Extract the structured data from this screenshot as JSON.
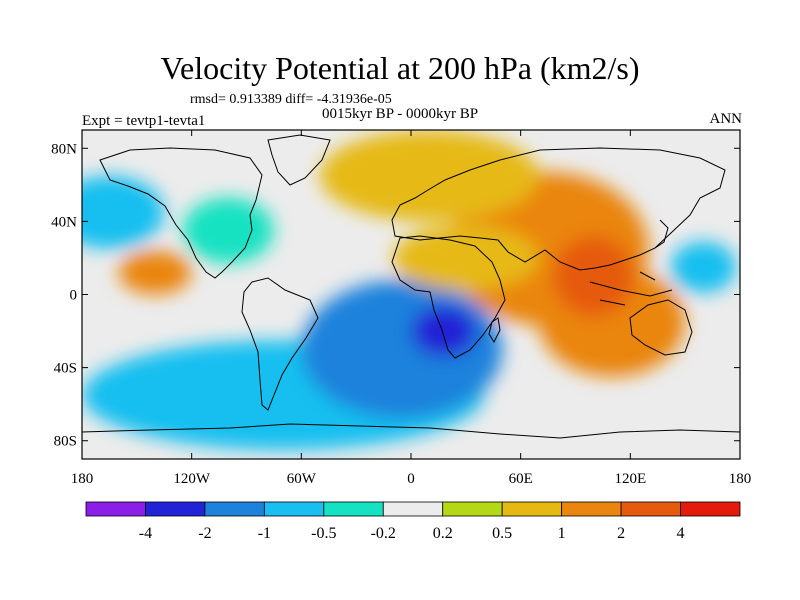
{
  "chart_data": {
    "type": "heatmap",
    "title": "Velocity Potential at 200 hPa (km2/s)",
    "stats_line": "rmsd= 0.913389 diff= -4.31936e-05",
    "left_subtitle": "Expt = tevtp1-tevta1",
    "center_subtitle": "0015kyr BP - 0000kyr BP",
    "right_subtitle": "ANN",
    "projection": "cylindrical equidistant",
    "xlim": [
      -180,
      180
    ],
    "ylim": [
      -90,
      90
    ],
    "x_ticks": [
      {
        "value": -180,
        "label": "180"
      },
      {
        "value": -120,
        "label": "120W"
      },
      {
        "value": -60,
        "label": "60W"
      },
      {
        "value": 0,
        "label": "0"
      },
      {
        "value": 60,
        "label": "60E"
      },
      {
        "value": 120,
        "label": "120E"
      },
      {
        "value": 180,
        "label": "180"
      }
    ],
    "y_ticks": [
      {
        "value": 80,
        "label": "80N"
      },
      {
        "value": 40,
        "label": "40N"
      },
      {
        "value": 0,
        "label": "0"
      },
      {
        "value": -40,
        "label": "40S"
      },
      {
        "value": -80,
        "label": "80S"
      }
    ],
    "colorbar": {
      "colors": [
        "#8b1ee8",
        "#2222d6",
        "#1c82dc",
        "#19bff0",
        "#15e2c2",
        "#ececec",
        "#b4d816",
        "#e6b912",
        "#ea8510",
        "#e65a0e",
        "#e41a0c"
      ],
      "boundaries": [
        -4,
        -2,
        -1,
        -0.5,
        -0.2,
        0.2,
        0.5,
        1,
        2,
        4
      ],
      "tick_labels": [
        "-4",
        "-2",
        "-1",
        "-0.5",
        "-0.2",
        "0.2",
        "0.5",
        "1",
        "2",
        "4"
      ]
    },
    "features": [
      {
        "name": "asian-monsoon-maximum",
        "lon": 100,
        "lat": 10,
        "rx": 22,
        "ry": 22,
        "value": 3.0
      },
      {
        "name": "eurasian-positive",
        "lon": 75,
        "lat": 25,
        "rx": 55,
        "ry": 42,
        "value": 1.6
      },
      {
        "name": "maritime-continent-positive",
        "lon": 110,
        "lat": -15,
        "rx": 40,
        "ry": 30,
        "value": 1.5
      },
      {
        "name": "north-atlantic-positive",
        "lon": 10,
        "lat": 65,
        "rx": 60,
        "ry": 25,
        "value": 0.9
      },
      {
        "name": "africa-positive",
        "lon": 30,
        "lat": 20,
        "rx": 40,
        "ry": 18,
        "value": 0.9
      },
      {
        "name": "central-pacific-positive",
        "lon": -140,
        "lat": 12,
        "rx": 20,
        "ry": 12,
        "value": 1.3
      },
      {
        "name": "south-atlantic-minimum",
        "lon": 18,
        "lat": -20,
        "rx": 18,
        "ry": 14,
        "value": -2.5
      },
      {
        "name": "south-atlantic-negative",
        "lon": -5,
        "lat": -30,
        "rx": 55,
        "ry": 38,
        "value": -1.3
      },
      {
        "name": "southern-ocean-negative",
        "lon": -70,
        "lat": -55,
        "rx": 110,
        "ry": 30,
        "value": -0.7
      },
      {
        "name": "north-pacific-negative",
        "lon": -165,
        "lat": 45,
        "rx": 30,
        "ry": 20,
        "value": -0.7
      },
      {
        "name": "west-pacific-negative",
        "lon": 160,
        "lat": 15,
        "rx": 18,
        "ry": 14,
        "value": -0.6
      },
      {
        "name": "north-america-negative",
        "lon": -100,
        "lat": 35,
        "rx": 25,
        "ry": 18,
        "value": -0.35
      }
    ]
  }
}
